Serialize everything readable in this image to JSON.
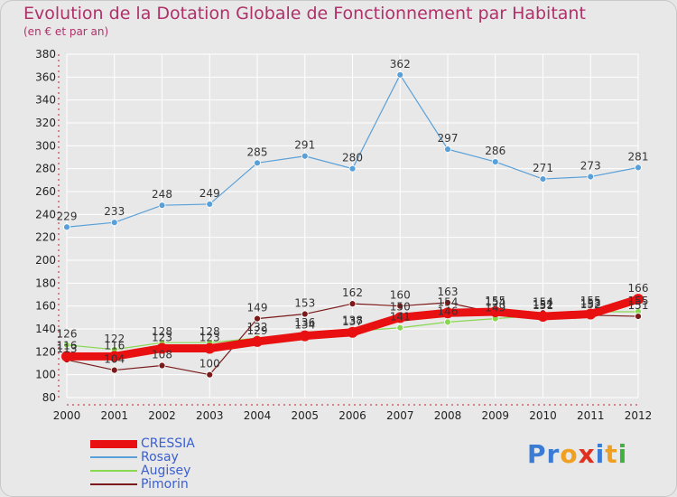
{
  "title": "Evolution de la Dotation Globale de Fonctionnement par Habitant",
  "subtitle": "(en € et par an)",
  "brand": {
    "text": "Proxiti",
    "letters": [
      "P",
      "r",
      "o",
      "x",
      "i",
      "t",
      "i"
    ],
    "colors": [
      "#3a7bd5",
      "#3a7bd5",
      "#f0a020",
      "#e03020",
      "#3a7bd5",
      "#f0a020",
      "#40b040"
    ]
  },
  "chart_data": {
    "type": "line",
    "x": [
      "2000",
      "2001",
      "2002",
      "2003",
      "2004",
      "2005",
      "2006",
      "2007",
      "2008",
      "2009",
      "2010",
      "2011",
      "2012"
    ],
    "ylim": [
      80,
      380
    ],
    "yticks": [
      "80",
      "100",
      "120",
      "140",
      "160",
      "180",
      "200",
      "220",
      "240",
      "260",
      "280",
      "300",
      "320",
      "340",
      "360",
      "380"
    ],
    "grid": true,
    "legend_position": "bottom-left",
    "series": [
      {
        "name": "CRESSIA",
        "color": "#e81010",
        "values": [
          116,
          116,
          123,
          123,
          129,
          134,
          137,
          150,
          154,
          155,
          151,
          153,
          166
        ],
        "labels": [
          "116",
          "116",
          "123",
          "123",
          "129",
          "134",
          "137",
          "150",
          "154",
          "155",
          "151",
          "153",
          "166"
        ]
      },
      {
        "name": "Rosay",
        "color": "#5aa0d8",
        "values": [
          229,
          233,
          248,
          249,
          285,
          291,
          280,
          362,
          297,
          286,
          271,
          273,
          281
        ],
        "labels": [
          "229",
          "233",
          "248",
          "249",
          "285",
          "291",
          "280",
          "362",
          "297",
          "286",
          "271",
          "273",
          "281"
        ]
      },
      {
        "name": "Augisey",
        "color": "#88d850",
        "values": [
          126,
          122,
          128,
          128,
          132,
          136,
          138,
          141,
          146,
          149,
          152,
          155,
          155
        ],
        "labels": [
          "126",
          "122",
          "128",
          "128",
          "132",
          "136",
          "138",
          "141",
          "146",
          "149",
          "152",
          "155",
          "155"
        ]
      },
      {
        "name": "Pimorin",
        "color": "#7a1a1a",
        "values": [
          113,
          104,
          108,
          100,
          149,
          153,
          162,
          160,
          163,
          154,
          154,
          152,
          151
        ],
        "labels": [
          "113",
          "104",
          "108",
          "100",
          "149",
          "153",
          "162",
          "160",
          "163",
          "154",
          "154",
          "152",
          "151"
        ]
      }
    ]
  }
}
